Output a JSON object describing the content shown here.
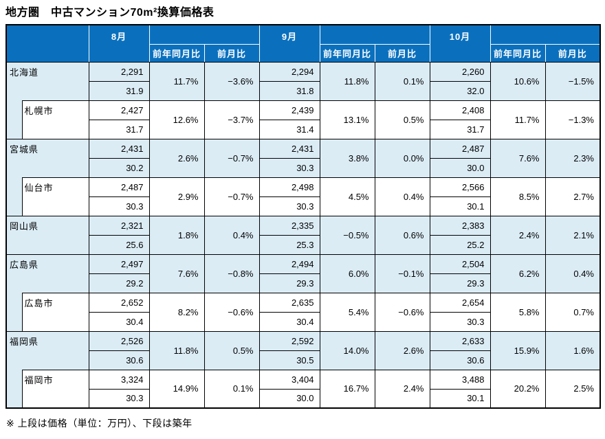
{
  "title": "地方圏　中古マンション70m²換算価格表",
  "footnote": "※ 上段は価格（単位：万円）、下段は築年",
  "colors": {
    "header_bg": "#0A70BE",
    "header_text": "#FFFFFF",
    "band_bg": "#DBECF5",
    "grid": "#000000"
  },
  "header": {
    "months": [
      "8月",
      "9月",
      "10月"
    ],
    "yoy": "前年同月比",
    "mom": "前月比"
  },
  "chart_data": {
    "type": "table",
    "row_structure": "上段は価格（単位：万円）、下段は築年",
    "rows": [
      {
        "name": "北海道",
        "level": "prefecture",
        "aug": {
          "price": "2,291",
          "age": "31.9",
          "yoy": "11.7%",
          "mom": "−3.6%"
        },
        "sep": {
          "price": "2,294",
          "age": "31.8",
          "yoy": "11.8%",
          "mom": "0.1%"
        },
        "oct": {
          "price": "2,260",
          "age": "32.0",
          "yoy": "10.6%",
          "mom": "−1.5%"
        }
      },
      {
        "name": "札幌市",
        "level": "city",
        "aug": {
          "price": "2,427",
          "age": "31.7",
          "yoy": "12.6%",
          "mom": "−3.7%"
        },
        "sep": {
          "price": "2,439",
          "age": "31.4",
          "yoy": "13.1%",
          "mom": "0.5%"
        },
        "oct": {
          "price": "2,408",
          "age": "31.7",
          "yoy": "11.7%",
          "mom": "−1.3%"
        }
      },
      {
        "name": "宮城県",
        "level": "prefecture",
        "aug": {
          "price": "2,431",
          "age": "30.2",
          "yoy": "2.6%",
          "mom": "−0.7%"
        },
        "sep": {
          "price": "2,431",
          "age": "30.3",
          "yoy": "3.8%",
          "mom": "0.0%"
        },
        "oct": {
          "price": "2,487",
          "age": "30.0",
          "yoy": "7.6%",
          "mom": "2.3%"
        }
      },
      {
        "name": "仙台市",
        "level": "city",
        "aug": {
          "price": "2,487",
          "age": "30.3",
          "yoy": "2.9%",
          "mom": "−0.7%"
        },
        "sep": {
          "price": "2,498",
          "age": "30.3",
          "yoy": "4.5%",
          "mom": "0.4%"
        },
        "oct": {
          "price": "2,566",
          "age": "30.1",
          "yoy": "8.5%",
          "mom": "2.7%"
        }
      },
      {
        "name": "岡山県",
        "level": "prefecture",
        "aug": {
          "price": "2,321",
          "age": "25.6",
          "yoy": "1.8%",
          "mom": "0.4%"
        },
        "sep": {
          "price": "2,335",
          "age": "25.3",
          "yoy": "−0.5%",
          "mom": "0.6%"
        },
        "oct": {
          "price": "2,383",
          "age": "25.2",
          "yoy": "2.4%",
          "mom": "2.1%"
        }
      },
      {
        "name": "広島県",
        "level": "prefecture",
        "aug": {
          "price": "2,497",
          "age": "29.2",
          "yoy": "7.6%",
          "mom": "−0.8%"
        },
        "sep": {
          "price": "2,494",
          "age": "29.3",
          "yoy": "6.0%",
          "mom": "−0.1%"
        },
        "oct": {
          "price": "2,504",
          "age": "29.3",
          "yoy": "6.2%",
          "mom": "0.4%"
        }
      },
      {
        "name": "広島市",
        "level": "city",
        "aug": {
          "price": "2,652",
          "age": "30.4",
          "yoy": "8.2%",
          "mom": "−0.6%"
        },
        "sep": {
          "price": "2,635",
          "age": "30.4",
          "yoy": "5.4%",
          "mom": "−0.6%"
        },
        "oct": {
          "price": "2,654",
          "age": "30.3",
          "yoy": "5.8%",
          "mom": "0.7%"
        }
      },
      {
        "name": "福岡県",
        "level": "prefecture",
        "aug": {
          "price": "2,526",
          "age": "30.6",
          "yoy": "11.8%",
          "mom": "0.5%"
        },
        "sep": {
          "price": "2,592",
          "age": "30.5",
          "yoy": "14.0%",
          "mom": "2.6%"
        },
        "oct": {
          "price": "2,633",
          "age": "30.6",
          "yoy": "15.9%",
          "mom": "1.6%"
        }
      },
      {
        "name": "福岡市",
        "level": "city",
        "aug": {
          "price": "3,324",
          "age": "30.3",
          "yoy": "14.9%",
          "mom": "0.1%"
        },
        "sep": {
          "price": "3,404",
          "age": "30.0",
          "yoy": "16.7%",
          "mom": "2.4%"
        },
        "oct": {
          "price": "3,488",
          "age": "30.1",
          "yoy": "20.2%",
          "mom": "2.5%"
        }
      }
    ]
  }
}
